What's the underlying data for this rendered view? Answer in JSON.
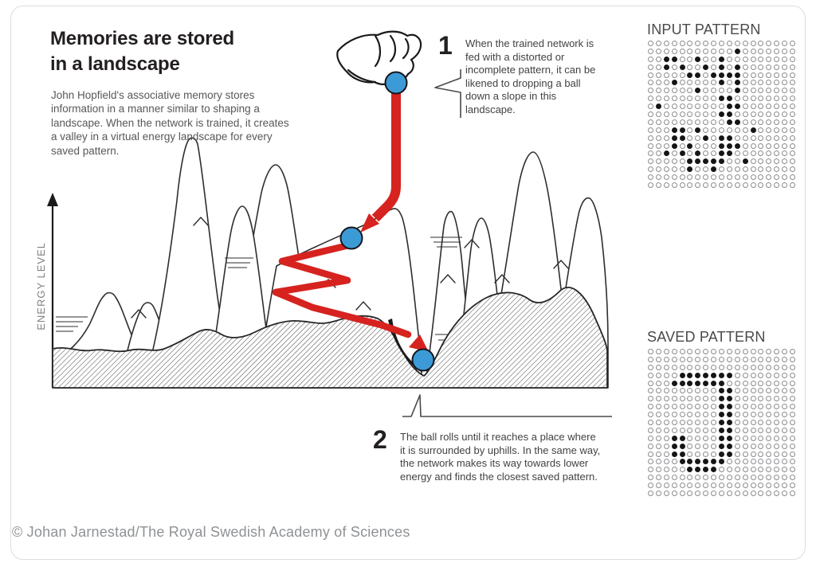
{
  "title": {
    "line1": "Memories are stored",
    "line2": "in a landscape"
  },
  "intro": "John Hopfield's associative memory stores information in a manner similar to shaping a landscape. When the network is trained, it creates a valley in a virtual energy landscape for every saved pattern.",
  "energy_axis_label": "ENERGY LEVEL",
  "annotation_1": {
    "number": "1",
    "text": "When the trained network is fed with a distorted or incomplete pattern, it can be likened to dropping a ball down a slope in this landscape."
  },
  "annotation_2": {
    "number": "2",
    "text": "The ball rolls until it reaches a place where it is surrounded by uphills. In the same way, the network makes its way towards lower energy and finds the closest saved pattern."
  },
  "input_pattern": {
    "label": "INPUT PATTERN",
    "grid_cols": 19,
    "grid_rows": 19,
    "rows": [
      "0000000000000000000",
      "0000000000010000000",
      "0011001001000000000",
      "0010100101010000000",
      "0000011011110000000",
      "0001000001010000000",
      "0000001000010000000",
      "0000000001100000000",
      "0100000000110000000",
      "0000000001100000000",
      "0000000000110000000",
      "0001101000000100000",
      "0001100101100000000",
      "0001010001110000000",
      "0010101001100000000",
      "0000011111001000000",
      "0000010010000000000",
      "0000000000000000000",
      "0000000000000000000"
    ]
  },
  "saved_pattern": {
    "label": "SAVED PATTERN",
    "grid_cols": 19,
    "grid_rows": 19,
    "rows": [
      "0000000000000000000",
      "0000000000000000000",
      "0000000000000000000",
      "0000111111100000000",
      "0001111111000000000",
      "0000000001100000000",
      "0000000001100000000",
      "0000000001100000000",
      "0000000001100000000",
      "0000000001100000000",
      "0000000001100000000",
      "0001100001100000000",
      "0001100001100000000",
      "0001100001100000000",
      "0000111111000000000",
      "0000011110000000000",
      "0000000000000000000",
      "0000000000000000000",
      "0000000000000000000"
    ]
  },
  "credit": "© Johan Jarnestad/The Royal Swedish Academy of Sciences",
  "colors": {
    "ball_blue": "#3c9bd6",
    "arrow_red": "#d6231f",
    "ink": "#231f20",
    "text_gray": "#57585a",
    "label_gray": "#48494b",
    "credit_gray": "#8f9194"
  }
}
